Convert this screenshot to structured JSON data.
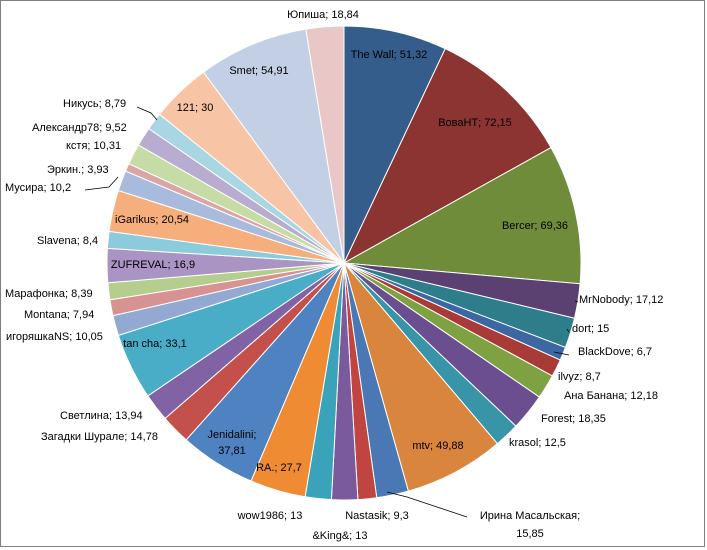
{
  "chart_data": {
    "type": "pie",
    "title": "",
    "start_angle_deg": 0,
    "direction": "clockwise",
    "slices": [
      {
        "label": "The Wall",
        "value": 51.32,
        "text": "The Wall; 51,32",
        "color": "#355d8c",
        "label_inside": true
      },
      {
        "label": "ВоваНТ",
        "value": 72.15,
        "text": "ВоваНТ; 72,15",
        "color": "#8b3432",
        "label_inside": true
      },
      {
        "label": "Bercer",
        "value": 69.36,
        "text": "Bercer; 69,36",
        "color": "#6f8c3a",
        "label_inside": true
      },
      {
        "label": "MrNobody",
        "value": 17.12,
        "text": "MrNobody; 17,12",
        "color": "#5a4172",
        "label_inside": false
      },
      {
        "label": "dort",
        "value": 15,
        "text": "dort; 15",
        "color": "#2e7d8a",
        "label_inside": false
      },
      {
        "label": "BlackDove",
        "value": 6.7,
        "text": "BlackDove; 6,7",
        "color": "#3d67a3",
        "label_inside": false
      },
      {
        "label": "ilvyz",
        "value": 8.7,
        "text": "ilvyz; 8,7",
        "color": "#a93b37",
        "label_inside": false
      },
      {
        "label": "Ана Банана",
        "value": 12.18,
        "text": "Ана Банана; 12,18",
        "color": "#7ea242",
        "label_inside": false
      },
      {
        "label": "Forest",
        "value": 18.35,
        "text": "Forest; 18,35",
        "color": "#6b4e8f",
        "label_inside": false
      },
      {
        "label": "krasol",
        "value": 12.5,
        "text": "krasol; 12,5",
        "color": "#3795a7",
        "label_inside": false
      },
      {
        "label": "mtv",
        "value": 49.88,
        "text": "mtv; 49,88",
        "color": "#d9853d",
        "label_inside": true
      },
      {
        "label": "Ирина Масальская",
        "value": 15.85,
        "text": "Ирина Масальская; 15,85",
        "color": "#4a78b4",
        "label_inside": false
      },
      {
        "label": "Nastasik",
        "value": 9.3,
        "text": "Nastasik; 9,3",
        "color": "#c0443f",
        "label_inside": false
      },
      {
        "label": "&King&",
        "value": 13,
        "text": "&King&; 13",
        "color": "#7a5a9c",
        "label_inside": false
      },
      {
        "label": "wow1986",
        "value": 13,
        "text": "wow1986; 13",
        "color": "#3aa3b9",
        "label_inside": false
      },
      {
        "label": "RA.",
        "value": 27.7,
        "text": "RA.; 27,7",
        "color": "#ee8b33",
        "label_inside": true
      },
      {
        "label": "Jenidalini",
        "value": 37.81,
        "text": "Jenidalini;\n37,81",
        "color": "#4f82c0",
        "label_inside": true
      },
      {
        "label": "Загадки Шурале",
        "value": 14.78,
        "text": "Загадки Шурале; 14,78",
        "color": "#c4504b",
        "label_inside": false
      },
      {
        "label": "Светлина",
        "value": 13.94,
        "text": "Светлина; 13,94",
        "color": "#8062a5",
        "label_inside": false
      },
      {
        "label": "tan cha",
        "value": 33.1,
        "text": "tan cha; 33,1",
        "color": "#4aadc7",
        "label_inside": true
      },
      {
        "label": "игоряшкаNS",
        "value": 10.05,
        "text": "игоряшкаNS; 10,05",
        "color": "#93a9d2",
        "label_inside": false
      },
      {
        "label": "Montana",
        "value": 7.94,
        "text": "Montana; 7,94",
        "color": "#d69391",
        "label_inside": false
      },
      {
        "label": "Марафонка",
        "value": 8.39,
        "text": "Марафонка; 8,39",
        "color": "#b5cd8d",
        "label_inside": false
      },
      {
        "label": "ZUFREVAL",
        "value": 16.9,
        "text": "ZUFREVAL;  16,9",
        "color": "#a994c4",
        "label_inside": true
      },
      {
        "label": "Slavena",
        "value": 8.4,
        "text": "Slavena; 8,4",
        "color": "#8ccbdc",
        "label_inside": false
      },
      {
        "label": "iGarikus",
        "value": 20.54,
        "text": "iGarikus; 20,54",
        "color": "#f7ae7d",
        "label_inside": true
      },
      {
        "label": "Мусира",
        "value": 10.2,
        "text": "Мусира; 10,2",
        "color": "#a9bbdc",
        "label_inside": false
      },
      {
        "label": "Эркин.",
        "value": 3.93,
        "text": "Эркин.; 3,93",
        "color": "#d9a6a4",
        "label_inside": false
      },
      {
        "label": "кстя",
        "value": 10.31,
        "text": "кстя; 10,31",
        "color": "#c7dba7",
        "label_inside": false
      },
      {
        "label": "Александр78",
        "value": 9.52,
        "text": "Александр78; 9,52",
        "color": "#b8acd0",
        "label_inside": false
      },
      {
        "label": "Никусь",
        "value": 8.79,
        "text": "Никусь; 8,79",
        "color": "#a8d6e3",
        "label_inside": false
      },
      {
        "label": "121",
        "value": 30,
        "text": "121; 30",
        "color": "#f8c4a6",
        "label_inside": true
      },
      {
        "label": "Smet",
        "value": 54.91,
        "text": "Smet; 54,91",
        "color": "#c3cfe4",
        "label_inside": true
      },
      {
        "label": "Юпиша",
        "value": 18.84,
        "text": "Юпиша; 18,84",
        "color": "#e8c7c6",
        "label_inside": false
      }
    ]
  }
}
